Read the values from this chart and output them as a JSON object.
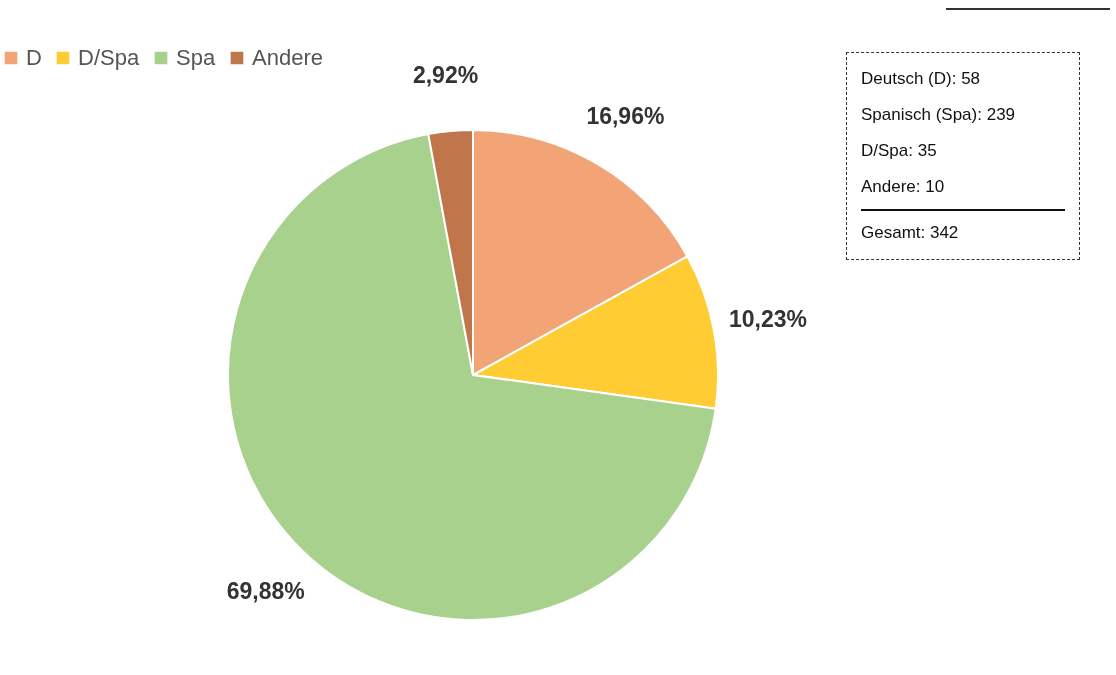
{
  "chart_data": {
    "type": "pie",
    "categories": [
      "D",
      "D/Spa",
      "Spa",
      "Andere"
    ],
    "values": [
      16.96,
      10.23,
      69.88,
      2.92
    ],
    "colors": [
      "#f2a477",
      "#ffcc33",
      "#a9d18e",
      "#c0764a"
    ],
    "value_labels": [
      "16,96%",
      "10,23%",
      "69,88%",
      "2,92%"
    ],
    "legend": "top",
    "annotations": [
      "Deutsch (D): 58",
      "Spanisch (Spa): 239",
      "D/Spa: 35",
      "Andere: 10",
      "Gesamt: 342"
    ]
  }
}
